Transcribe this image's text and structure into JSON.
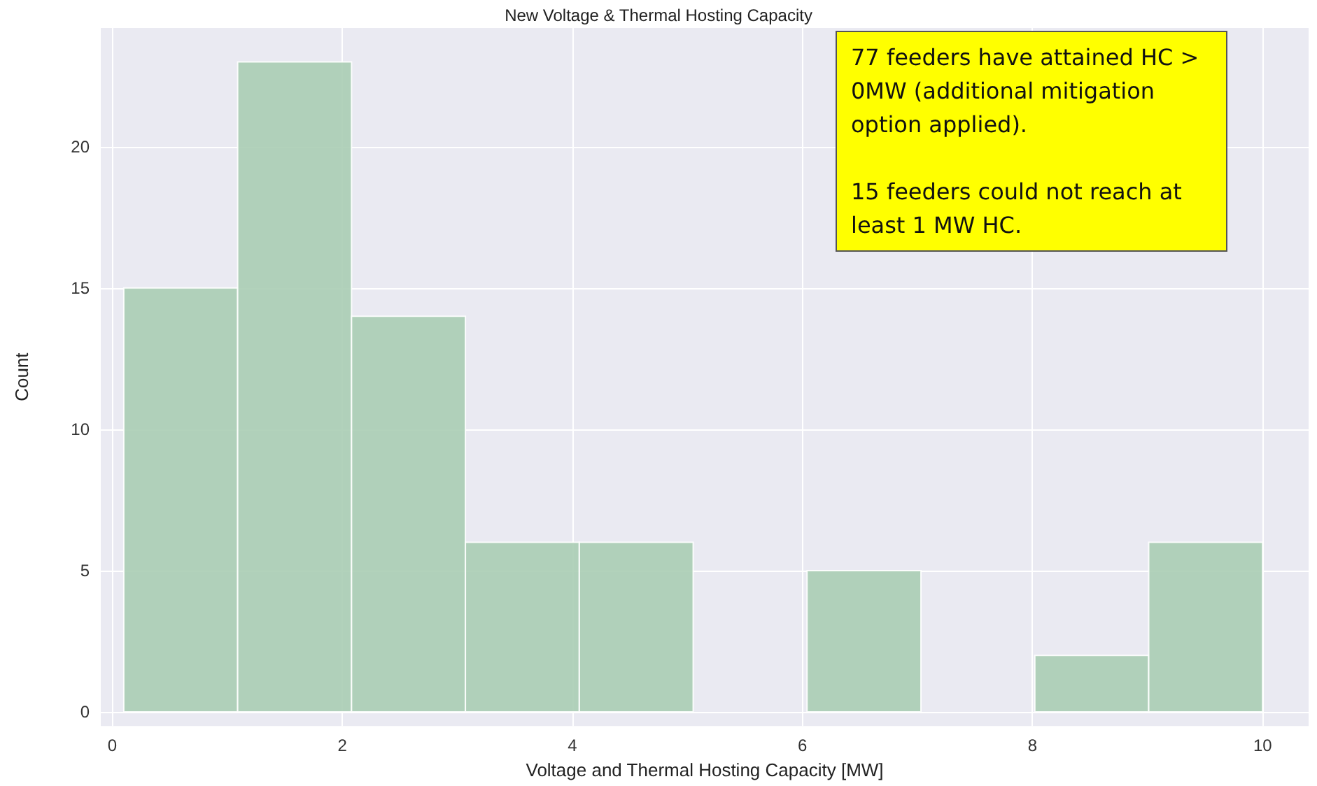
{
  "chart_data": {
    "type": "histogram",
    "title": "New Voltage & Thermal Hosting Capacity",
    "xlabel": "Voltage and Thermal Hosting Capacity [MW]",
    "ylabel": "Count",
    "bins": [
      0.1,
      1.09,
      2.08,
      3.07,
      4.06,
      5.05,
      6.04,
      7.03,
      8.02,
      9.01,
      10
    ],
    "values": [
      15,
      23,
      14,
      6,
      6,
      0,
      5,
      0,
      2,
      6
    ],
    "color": "#aacdb4",
    "xlim": [
      -0.1,
      10.4
    ],
    "xticks": [
      0,
      2,
      4,
      6,
      8,
      10
    ],
    "ylim": [
      -0.5,
      24.2
    ],
    "yticks": [
      0,
      5,
      10,
      15,
      20
    ],
    "grid": true,
    "annotations": [
      "77 feeders have attained HC > 0MW (additional mitigation option applied).",
      "15 feeders could not reach at least 1 MW HC."
    ]
  }
}
